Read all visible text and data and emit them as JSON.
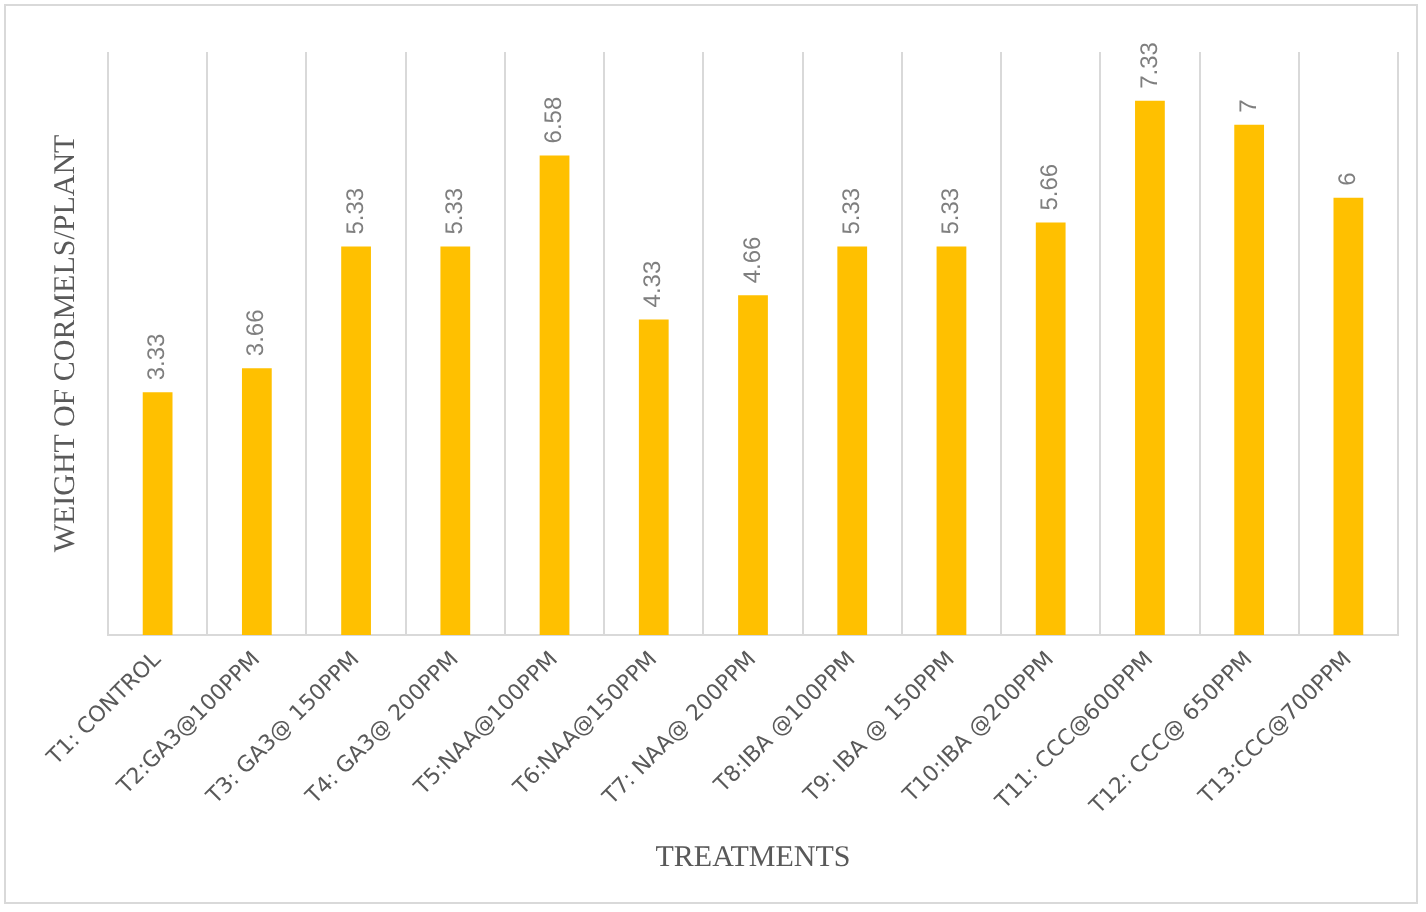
{
  "chart_data": {
    "type": "bar",
    "xlabel": "TREATMENTS",
    "ylabel": "WEIGHT OF CORMELS/PLANT",
    "categories": [
      "T1: CONTROL",
      "T2:GA3@100PPM",
      "T3: GA3@ 150PPM",
      "T4: GA3@ 200PPM",
      "T5:NAA@100PPM",
      "T6:NAA@150PPM",
      "T7: NAA@ 200PPM",
      "T8:IBA @100PPM",
      "T9: IBA @ 150PPM",
      "T10:IBA @200PPM",
      "T11: CCC@600PPM",
      "T12: CCC@ 650PPM",
      "T13:CCC@700PPM"
    ],
    "values": [
      3.33,
      3.66,
      5.33,
      5.33,
      6.58,
      4.33,
      4.66,
      5.33,
      5.33,
      5.66,
      7.33,
      7,
      6
    ],
    "color": "#ffc000",
    "ylim": [
      0,
      8
    ],
    "data_labels": true,
    "grid": "x",
    "legend": false,
    "tick_labels": "x"
  }
}
